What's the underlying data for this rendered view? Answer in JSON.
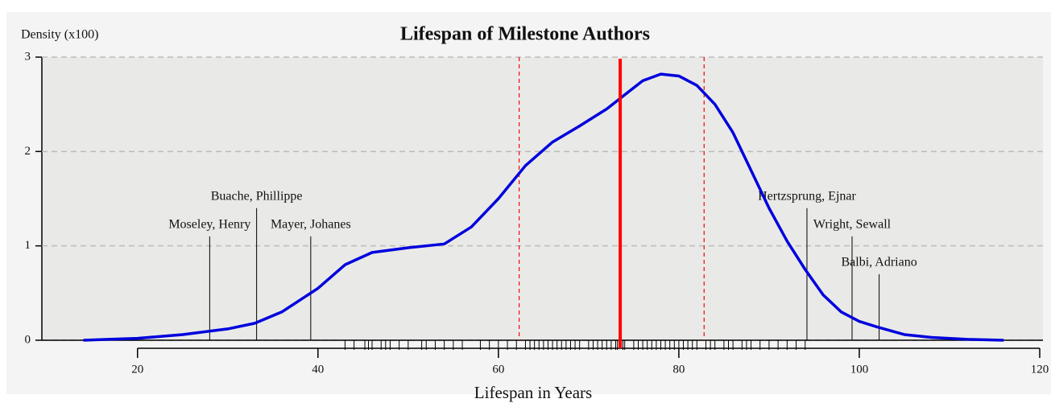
{
  "chart_data": {
    "type": "line",
    "title": "Lifespan of Milestone Authors",
    "y_label": "Density (x100)",
    "x_label": "Lifespan in Years",
    "xlim": [
      9.4,
      120
    ],
    "ylim": [
      0,
      3
    ],
    "xticks": [
      20,
      40,
      60,
      80,
      100,
      120
    ],
    "yticks": [
      0,
      1,
      2,
      3
    ],
    "grid": true,
    "x": [
      14,
      20,
      25,
      30,
      33,
      36,
      40,
      43,
      46,
      50,
      54,
      57,
      60,
      63,
      66,
      69,
      72,
      74,
      76,
      78,
      80,
      82,
      84,
      86,
      88,
      90,
      92,
      94,
      96,
      98,
      100,
      102,
      105,
      108,
      112,
      116
    ],
    "series": [
      {
        "name": "Density",
        "color": "#0000dd",
        "values": [
          0,
          0.02,
          0.06,
          0.12,
          0.18,
          0.3,
          0.55,
          0.8,
          0.93,
          0.98,
          1.02,
          1.2,
          1.5,
          1.85,
          2.1,
          2.27,
          2.45,
          2.6,
          2.75,
          2.82,
          2.8,
          2.7,
          2.5,
          2.2,
          1.8,
          1.4,
          1.05,
          0.75,
          0.48,
          0.3,
          0.2,
          0.14,
          0.06,
          0.03,
          0.01,
          0
        ]
      }
    ],
    "rug": [
      43,
      44,
      45.2,
      45.6,
      46,
      47,
      47.5,
      48,
      49,
      50,
      51.5,
      52,
      53,
      54,
      55,
      56,
      58,
      59,
      60,
      61,
      62,
      63,
      63.5,
      64,
      64.5,
      65,
      65.5,
      66,
      66.5,
      67,
      67.5,
      68,
      68.5,
      69,
      70,
      70.5,
      71,
      71.5,
      72,
      72.5,
      73,
      73.2,
      73.8,
      74,
      75,
      75.5,
      76,
      76.5,
      77,
      77.5,
      78,
      78.5,
      79,
      79.5,
      80,
      80.5,
      81,
      81.5,
      82,
      83,
      83.5,
      84,
      85,
      85.5,
      86,
      87,
      87.5,
      88,
      89,
      90,
      91,
      92,
      93,
      94
    ],
    "mean": 73.5,
    "mean_color": "#ff0000",
    "bounds": [
      62.3,
      82.8
    ],
    "annotations": [
      {
        "label": "Moseley, Henry",
        "x": 28,
        "y": 1.1
      },
      {
        "label": "Buache, Phillippe",
        "x": 33.2,
        "y": 1.4
      },
      {
        "label": "Mayer, Johanes",
        "x": 39.2,
        "y": 1.1
      },
      {
        "label": "Hertzsprung, Ejnar",
        "x": 94.2,
        "y": 1.4
      },
      {
        "label": "Wright, Sewall",
        "x": 99.2,
        "y": 1.1
      },
      {
        "label": "Balbi, Adriano",
        "x": 102.2,
        "y": 0.7
      }
    ]
  }
}
